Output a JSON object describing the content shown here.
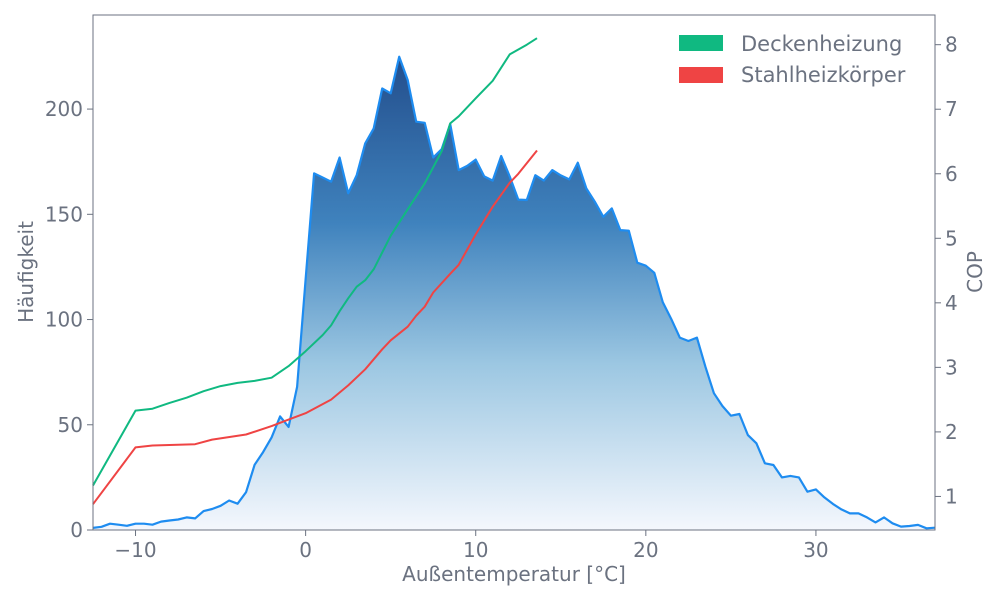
{
  "chart_data": {
    "type": "area+line",
    "xlabel": "Außentemperatur [°C]",
    "ylabel_left": "Häufigkeit",
    "ylabel_right": "COP",
    "xlim": [
      -12.5,
      37.0
    ],
    "ylim_left": [
      0,
      244.7
    ],
    "ylim_right": [
      0.48,
      8.46
    ],
    "x_ticks": [
      -10,
      0,
      10,
      20,
      30
    ],
    "x_tick_labels": [
      "−10",
      "0",
      "10",
      "20",
      "30"
    ],
    "y_left_ticks": [
      0,
      50,
      100,
      150,
      200
    ],
    "y_right_ticks": [
      1,
      2,
      3,
      4,
      5,
      6,
      7,
      8
    ],
    "grid": false,
    "legend_position": "top-right",
    "histogram": {
      "color_line": "#1e8cf0",
      "fill": "gradient-blues",
      "x_start": -12.5,
      "x_step": 0.5,
      "values": [
        1,
        1.5,
        3,
        2.5,
        2,
        3,
        3,
        2.5,
        4,
        4.5,
        5,
        6,
        5.5,
        9,
        10,
        11.5,
        14,
        12.5,
        18,
        31,
        37,
        44,
        54,
        49,
        68,
        119,
        169.5,
        167.5,
        165.5,
        177,
        160,
        168.6,
        183.7,
        190.8,
        209.8,
        207.5,
        224.9,
        213.8,
        194,
        193.5,
        177,
        181,
        192.9,
        171,
        173,
        176,
        168,
        166,
        177.7,
        168,
        157,
        156.8,
        168.6,
        166,
        171,
        168.5,
        166.6,
        174.5,
        162.3,
        156,
        148.8,
        152.8,
        142.5,
        142.2,
        127,
        125.6,
        122.2,
        108.2,
        100.2,
        91.4,
        89.8,
        91.4,
        77.6,
        65,
        58.9,
        54.3,
        55.1,
        45.1,
        41.2,
        31.7,
        30.9,
        25,
        25.7,
        25,
        18.2,
        19.3,
        15.5,
        12.4,
        9.8,
        7.9,
        7.9,
        6,
        3.6,
        6,
        3.2,
        1.6,
        1.9,
        2.4,
        0.8,
        1.1
      ]
    },
    "series": [
      {
        "name": "Deckenheizung",
        "color": "#10b981",
        "axis": "right",
        "x": [
          -12.5,
          -10,
          -9,
          -8,
          -7,
          -6,
          -5,
          -4,
          -3,
          -2,
          -1,
          0,
          1,
          1.5,
          2,
          2.5,
          3,
          3.5,
          4,
          4.5,
          5,
          6,
          7,
          8,
          8.5,
          9,
          10,
          11,
          12,
          13,
          13.6
        ],
        "y": [
          1.17,
          2.33,
          2.36,
          2.45,
          2.53,
          2.63,
          2.71,
          2.76,
          2.79,
          2.84,
          3.02,
          3.25,
          3.5,
          3.65,
          3.87,
          4.07,
          4.25,
          4.35,
          4.52,
          4.78,
          5.04,
          5.45,
          5.85,
          6.35,
          6.78,
          6.89,
          7.17,
          7.44,
          7.85,
          8.0,
          8.1
        ]
      },
      {
        "name": "Stahlheizkörper",
        "color": "#ef4444",
        "axis": "right",
        "x": [
          -12.5,
          -10,
          -9,
          -6.5,
          -5.5,
          -3.5,
          -2,
          -1,
          0,
          1.5,
          2.5,
          3.5,
          4.5,
          5,
          6,
          6.5,
          7,
          7.5,
          8.5,
          9,
          10,
          11,
          12,
          12.5,
          13.6
        ],
        "y": [
          0.88,
          1.76,
          1.79,
          1.81,
          1.88,
          1.96,
          2.09,
          2.19,
          2.29,
          2.5,
          2.72,
          2.97,
          3.28,
          3.42,
          3.63,
          3.8,
          3.94,
          4.16,
          4.45,
          4.59,
          5.06,
          5.49,
          5.86,
          6.0,
          6.36
        ]
      }
    ]
  }
}
